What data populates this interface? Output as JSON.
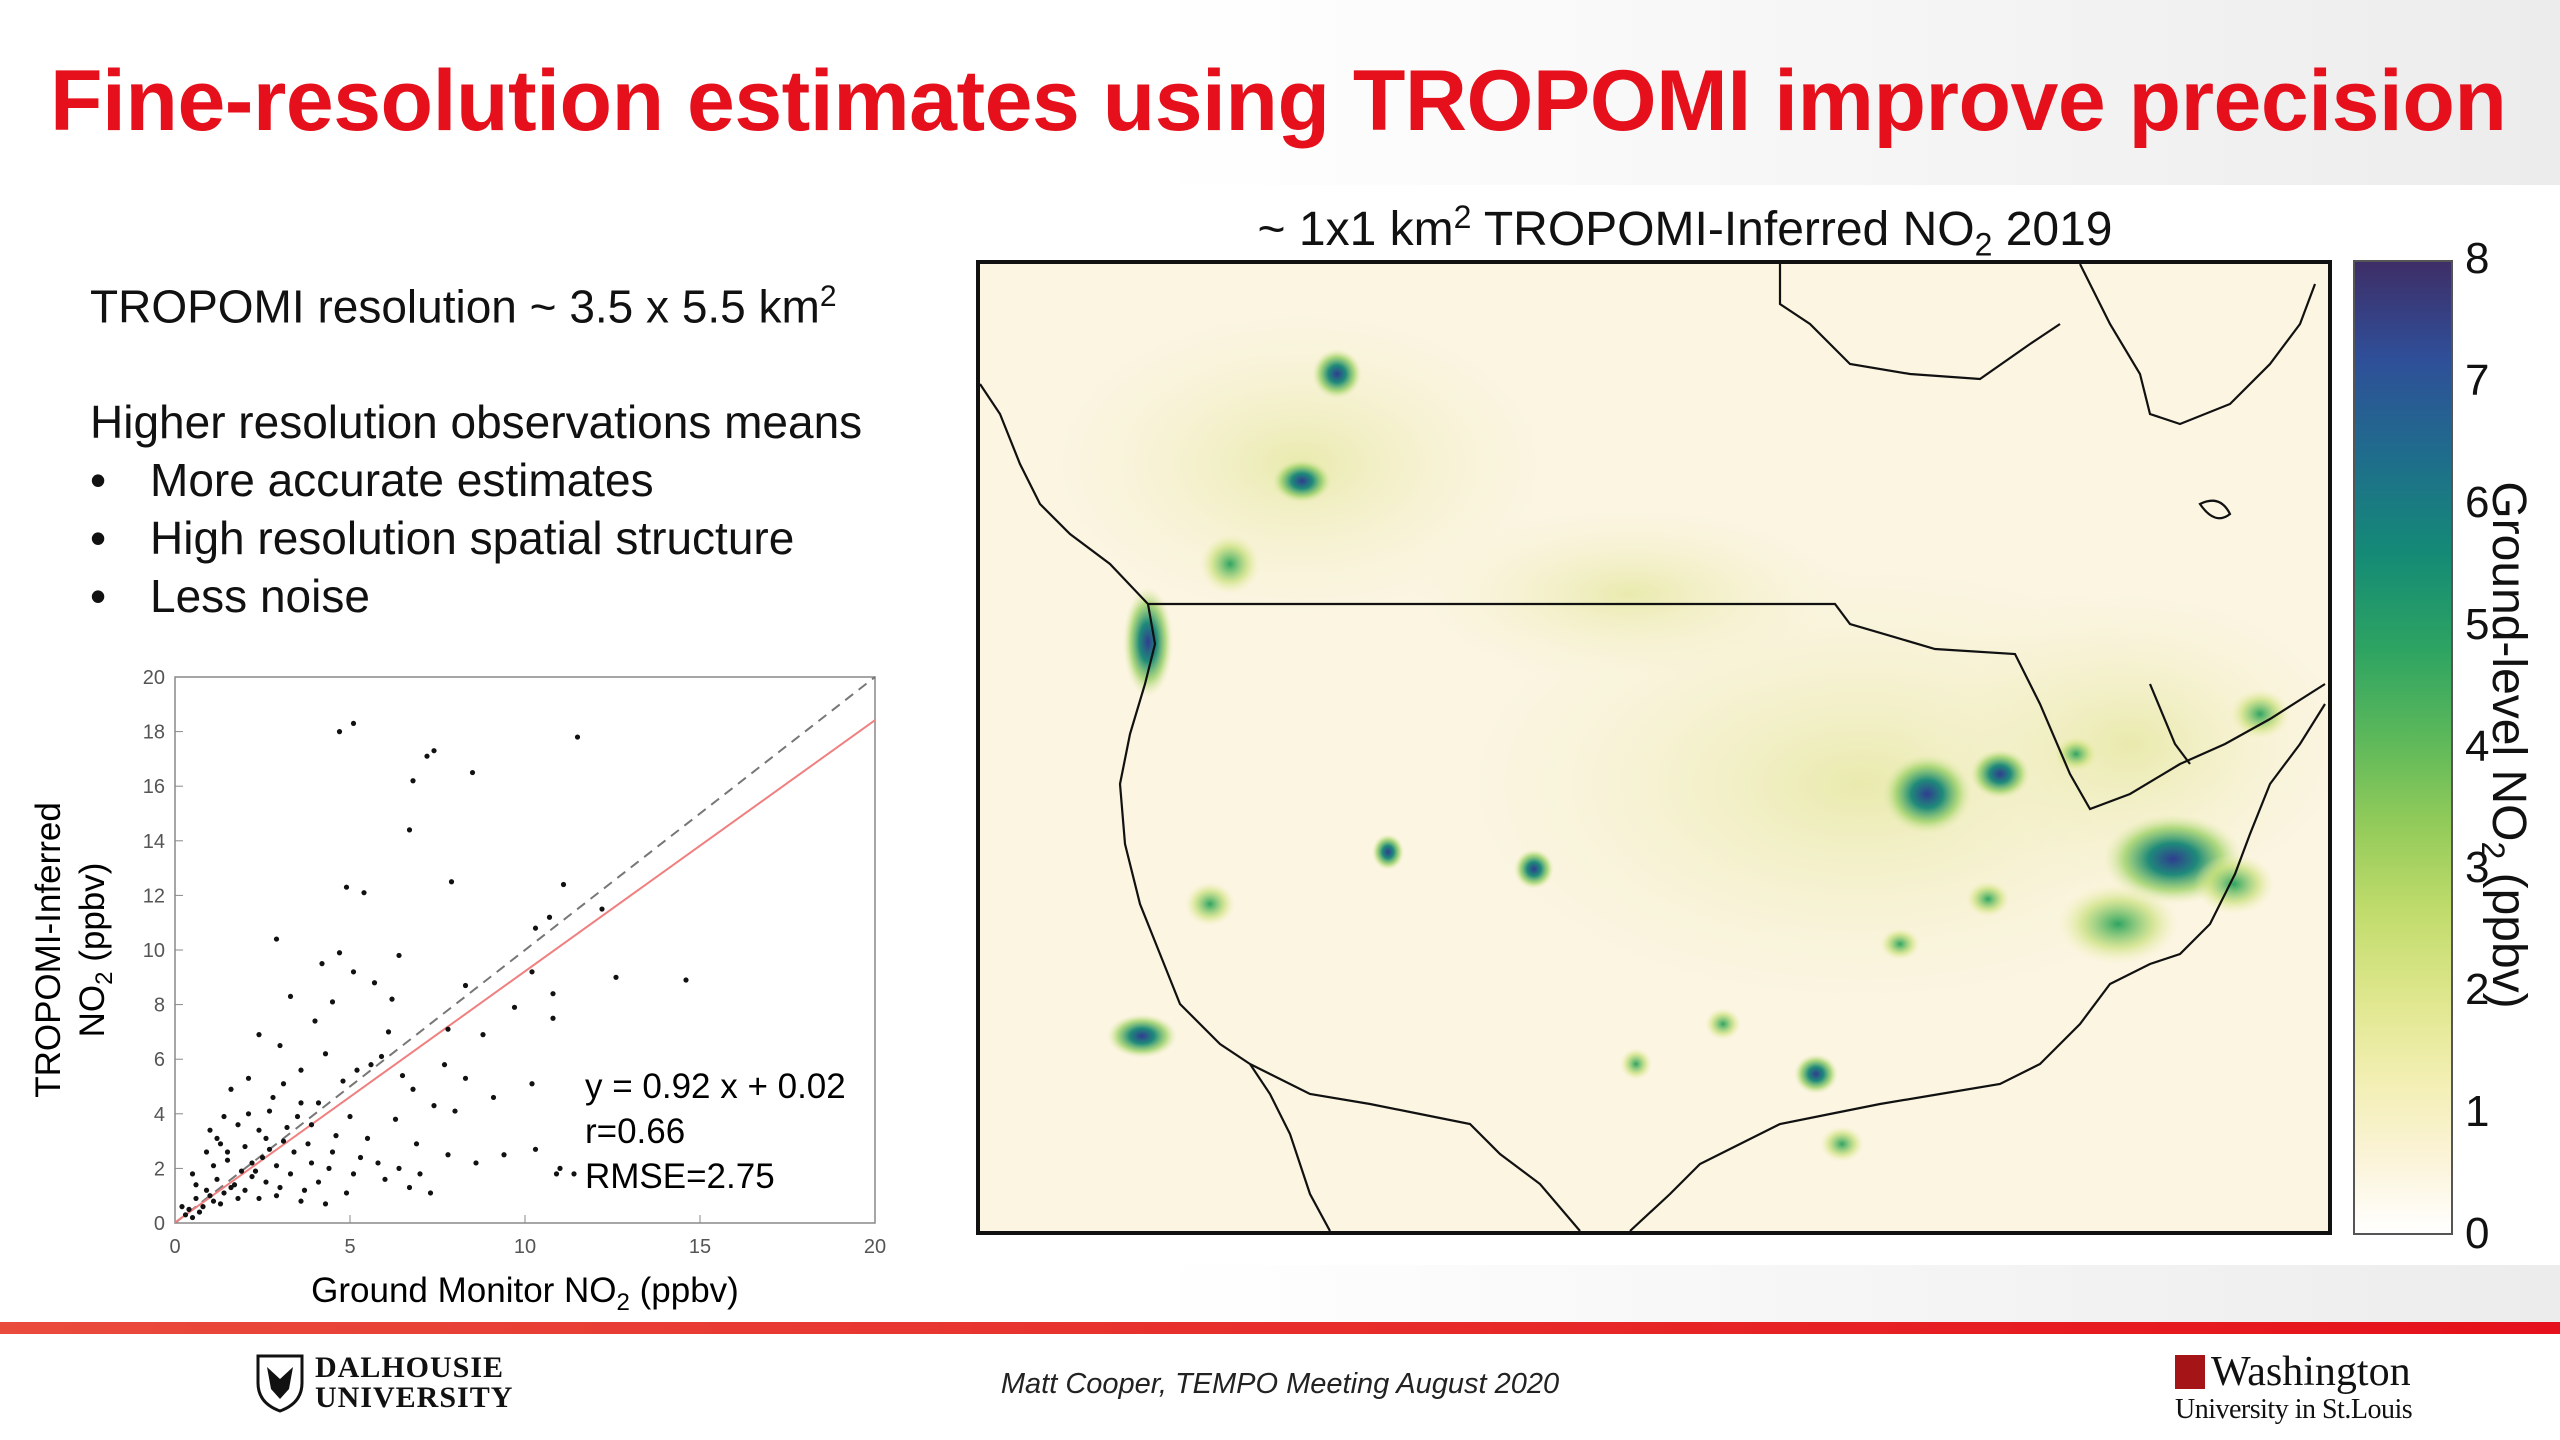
{
  "slide": {
    "title": "Fine-resolution estimates using TROPOMI improve precision",
    "resolution_text": "TROPOMI resolution ~ 3.5 x 5.5 km",
    "resolution_sup": "2",
    "intro": "Higher resolution observations means",
    "bullets": [
      "More accurate estimates",
      "High resolution spatial structure",
      "Less noise"
    ]
  },
  "footer": {
    "credit": "Matt Cooper, TEMPO Meeting August 2020",
    "logo_left_line1": "DALHOUSIE",
    "logo_left_line2": "UNIVERSITY",
    "logo_right_line1": "Washington",
    "logo_right_line2": "University in St.Louis"
  },
  "colors": {
    "title": "#e5101b",
    "fit_line": "#f08080",
    "identity_line": "#777777"
  },
  "chart_data": [
    {
      "type": "scatter",
      "xlabel_main": "Ground Monitor NO",
      "xlabel_sub": "2",
      "xlabel_unit": " (ppbv)",
      "ylabel_line1": "TROPOMI-Inferred",
      "ylabel_main": "NO",
      "ylabel_sub": "2",
      "ylabel_unit": " (ppbv)",
      "xlim": [
        0,
        20
      ],
      "ylim": [
        0,
        20
      ],
      "xticks": [
        0,
        5,
        10,
        15,
        20
      ],
      "yticks": [
        0,
        2,
        4,
        6,
        8,
        10,
        12,
        14,
        16,
        18,
        20
      ],
      "annotations": [
        "y = 0.92 x + 0.02",
        "r=0.66",
        "RMSE=2.75"
      ],
      "fit": {
        "slope": 0.92,
        "intercept": 0.02
      },
      "points": [
        [
          5.1,
          18.3
        ],
        [
          4.7,
          18.0
        ],
        [
          7.4,
          17.3
        ],
        [
          7.2,
          17.1
        ],
        [
          8.5,
          16.5
        ],
        [
          11.5,
          17.8
        ],
        [
          6.8,
          16.2
        ],
        [
          6.7,
          14.4
        ],
        [
          4.9,
          12.3
        ],
        [
          5.4,
          12.1
        ],
        [
          7.9,
          12.5
        ],
        [
          11.1,
          12.4
        ],
        [
          10.7,
          11.2
        ],
        [
          12.2,
          11.5
        ],
        [
          2.9,
          10.4
        ],
        [
          4.2,
          9.5
        ],
        [
          4.7,
          9.9
        ],
        [
          6.4,
          9.8
        ],
        [
          10.3,
          10.8
        ],
        [
          12.6,
          9.0
        ],
        [
          14.6,
          8.9
        ],
        [
          10.2,
          9.2
        ],
        [
          5.1,
          9.2
        ],
        [
          5.7,
          8.8
        ],
        [
          3.3,
          8.3
        ],
        [
          4.5,
          8.1
        ],
        [
          8.3,
          8.7
        ],
        [
          10.8,
          8.4
        ],
        [
          9.7,
          7.9
        ],
        [
          10.8,
          7.5
        ],
        [
          6.2,
          8.2
        ],
        [
          4.0,
          7.4
        ],
        [
          7.8,
          7.1
        ],
        [
          8.8,
          6.9
        ],
        [
          2.4,
          6.9
        ],
        [
          6.1,
          7.0
        ],
        [
          3.0,
          6.5
        ],
        [
          4.3,
          6.2
        ],
        [
          5.6,
          5.8
        ],
        [
          10.2,
          5.1
        ],
        [
          9.1,
          4.6
        ],
        [
          7.4,
          4.3
        ],
        [
          8.0,
          4.1
        ],
        [
          6.3,
          3.8
        ],
        [
          5.0,
          3.9
        ],
        [
          3.6,
          4.4
        ],
        [
          2.7,
          4.1
        ],
        [
          3.9,
          3.6
        ],
        [
          4.6,
          3.2
        ],
        [
          5.5,
          3.1
        ],
        [
          6.9,
          2.9
        ],
        [
          7.8,
          2.5
        ],
        [
          8.6,
          2.2
        ],
        [
          9.4,
          2.5
        ],
        [
          10.3,
          2.7
        ],
        [
          11.0,
          2.0
        ],
        [
          10.9,
          1.8
        ],
        [
          11.4,
          1.8
        ],
        [
          1.6,
          4.9
        ],
        [
          2.1,
          5.3
        ],
        [
          1.2,
          3.1
        ],
        [
          1.8,
          3.6
        ],
        [
          2.4,
          3.4
        ],
        [
          3.1,
          3.0
        ],
        [
          3.4,
          2.6
        ],
        [
          3.9,
          2.2
        ],
        [
          4.4,
          2.0
        ],
        [
          5.1,
          1.8
        ],
        [
          6.0,
          1.6
        ],
        [
          6.7,
          1.3
        ],
        [
          7.3,
          1.1
        ],
        [
          2.0,
          2.8
        ],
        [
          2.5,
          2.4
        ],
        [
          2.9,
          2.1
        ],
        [
          1.5,
          2.3
        ],
        [
          1.9,
          1.9
        ],
        [
          1.2,
          1.6
        ],
        [
          0.9,
          1.2
        ],
        [
          0.6,
          0.9
        ],
        [
          0.4,
          0.5
        ],
        [
          0.7,
          0.4
        ],
        [
          1.1,
          0.8
        ],
        [
          1.4,
          1.1
        ],
        [
          1.7,
          1.4
        ],
        [
          2.2,
          1.7
        ],
        [
          2.6,
          1.5
        ],
        [
          3.0,
          1.3
        ],
        [
          3.3,
          1.8
        ],
        [
          3.7,
          1.2
        ],
        [
          4.1,
          1.5
        ],
        [
          4.9,
          1.1
        ],
        [
          0.9,
          2.6
        ],
        [
          1.3,
          2.9
        ],
        [
          0.5,
          1.8
        ],
        [
          0.8,
          0.6
        ],
        [
          1.0,
          1.0
        ],
        [
          1.6,
          1.3
        ],
        [
          2.0,
          1.2
        ],
        [
          2.3,
          1.9
        ],
        [
          2.7,
          2.7
        ],
        [
          3.2,
          3.5
        ],
        [
          3.5,
          3.9
        ],
        [
          4.1,
          4.4
        ],
        [
          4.8,
          5.2
        ],
        [
          5.2,
          5.6
        ],
        [
          5.9,
          6.1
        ],
        [
          6.5,
          5.4
        ],
        [
          6.8,
          4.9
        ],
        [
          7.7,
          5.8
        ],
        [
          8.3,
          5.3
        ],
        [
          0.3,
          0.3
        ],
        [
          0.5,
          0.2
        ],
        [
          1.3,
          0.7
        ],
        [
          1.8,
          0.9
        ],
        [
          2.4,
          0.9
        ],
        [
          2.9,
          1.0
        ],
        [
          3.6,
          0.8
        ],
        [
          4.3,
          0.7
        ],
        [
          0.2,
          0.6
        ],
        [
          0.6,
          1.4
        ],
        [
          1.1,
          2.1
        ],
        [
          1.5,
          2.6
        ],
        [
          2.2,
          2.2
        ],
        [
          2.6,
          3.1
        ],
        [
          3.8,
          2.9
        ],
        [
          4.5,
          2.6
        ],
        [
          5.3,
          2.4
        ],
        [
          5.8,
          2.2
        ],
        [
          6.4,
          2.0
        ],
        [
          7.0,
          1.8
        ],
        [
          2.1,
          4.0
        ],
        [
          2.8,
          4.6
        ],
        [
          3.1,
          5.1
        ],
        [
          3.6,
          5.6
        ],
        [
          1.0,
          3.4
        ],
        [
          1.4,
          3.9
        ]
      ]
    },
    {
      "type": "heatmap",
      "title_main": "~ 1x1 km",
      "title_sup": "2",
      "title_mid": " TROPOMI-Inferred NO",
      "title_sub": "2",
      "title_end": " 2019",
      "colorbar_label_main": "Ground-level NO",
      "colorbar_label_sub": "2",
      "colorbar_label_unit": " (ppbv)",
      "colorbar_range": [
        0,
        8
      ],
      "colorbar_ticks": [
        0,
        1,
        2,
        3,
        4,
        5,
        6,
        7,
        8
      ]
    }
  ]
}
